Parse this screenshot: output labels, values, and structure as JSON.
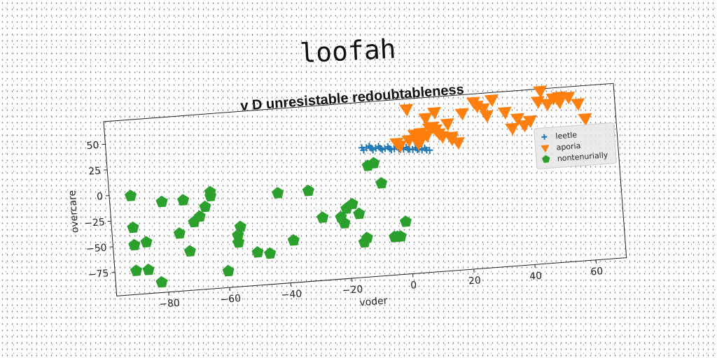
{
  "chart_data": {
    "type": "scatter",
    "title": "loofah",
    "subtitle": "v D unresistable redoubtableness",
    "xlabel": "voder",
    "ylabel": "overcare",
    "xlim": [
      -97,
      70
    ],
    "ylim": [
      -98,
      72
    ],
    "xticks": [
      -80,
      -60,
      -40,
      -20,
      0,
      20,
      40,
      60
    ],
    "yticks": [
      -75,
      -50,
      -25,
      0,
      25,
      50
    ],
    "grid": false,
    "legend_position": "right",
    "series": [
      {
        "name": "leetle",
        "marker": "plus",
        "color": "#1f77b4",
        "x": [
          -13.5,
          -12.0,
          -10.5,
          -9.0,
          -7.5,
          -6.0,
          -4.5,
          -3.0,
          -1.5,
          0.0,
          1.5,
          3.0,
          4.5,
          6.0,
          7.5,
          8.5,
          -11.0,
          -8.0,
          -5.0,
          -2.0,
          1.0,
          4.0,
          7.0,
          -13.0,
          -10.0,
          -7.0,
          -4.0,
          -1.0,
          2.0,
          5.0
        ],
        "y": [
          28.0,
          27.5,
          27.0,
          26.5,
          26.0,
          25.5,
          25.0,
          24.5,
          24.0,
          23.5,
          23.0,
          22.5,
          22.0,
          21.5,
          21.0,
          20.5,
          29.0,
          28.0,
          27.0,
          26.0,
          25.0,
          24.0,
          23.0,
          25.5,
          25.0,
          24.5,
          24.0,
          23.5,
          23.0,
          22.5
        ]
      },
      {
        "name": "aporia",
        "marker": "triangle_down",
        "color": "#ff7f0e",
        "x": [
          -2,
          2,
          5,
          6,
          8,
          9,
          10,
          11,
          12,
          13,
          15,
          16,
          18,
          2,
          8,
          11,
          16,
          25,
          28,
          30,
          34,
          38,
          40,
          42,
          45,
          48,
          50,
          52,
          55,
          60,
          24,
          27,
          20,
          36,
          46,
          52,
          58,
          4,
          6,
          -1
        ],
        "y": [
          30,
          32,
          28,
          38,
          35,
          42,
          43,
          40,
          36,
          33,
          45,
          30,
          26,
          62,
          52,
          57,
          32,
          60,
          50,
          65,
          52,
          45,
          38,
          42,
          60,
          57,
          62,
          63,
          62,
          40,
          64,
          57,
          54,
          36,
          70,
          58,
          55,
          37,
          31,
          27
        ]
      },
      {
        "name": "nontenurially",
        "marker": "pentagon",
        "color": "#2ca02c",
        "x": [
          -90,
          -90,
          -90,
          -90,
          -86,
          -86,
          -82,
          -80,
          -75,
          -73,
          -72,
          -70,
          -68,
          -66,
          -64,
          -64,
          -60,
          -56,
          -56,
          -55,
          -50,
          -46,
          -42,
          -38,
          -32,
          -28,
          -22,
          -21,
          -20,
          -18,
          -16,
          -15,
          -14,
          -12,
          -10,
          -8,
          -5,
          -4,
          -3,
          -1
        ],
        "y": [
          -2,
          -33,
          -50,
          -75,
          -48,
          -75,
          -88,
          -10,
          -42,
          -10,
          -60,
          -32,
          -27,
          -18,
          -8,
          -4,
          -82,
          -48,
          -55,
          -40,
          -66,
          -68,
          -10,
          -57,
          -10,
          -37,
          -38,
          -44,
          -30,
          -26,
          -36,
          -64,
          -60,
          10,
          12,
          -8,
          -61,
          -61,
          -61,
          -47
        ]
      }
    ]
  }
}
